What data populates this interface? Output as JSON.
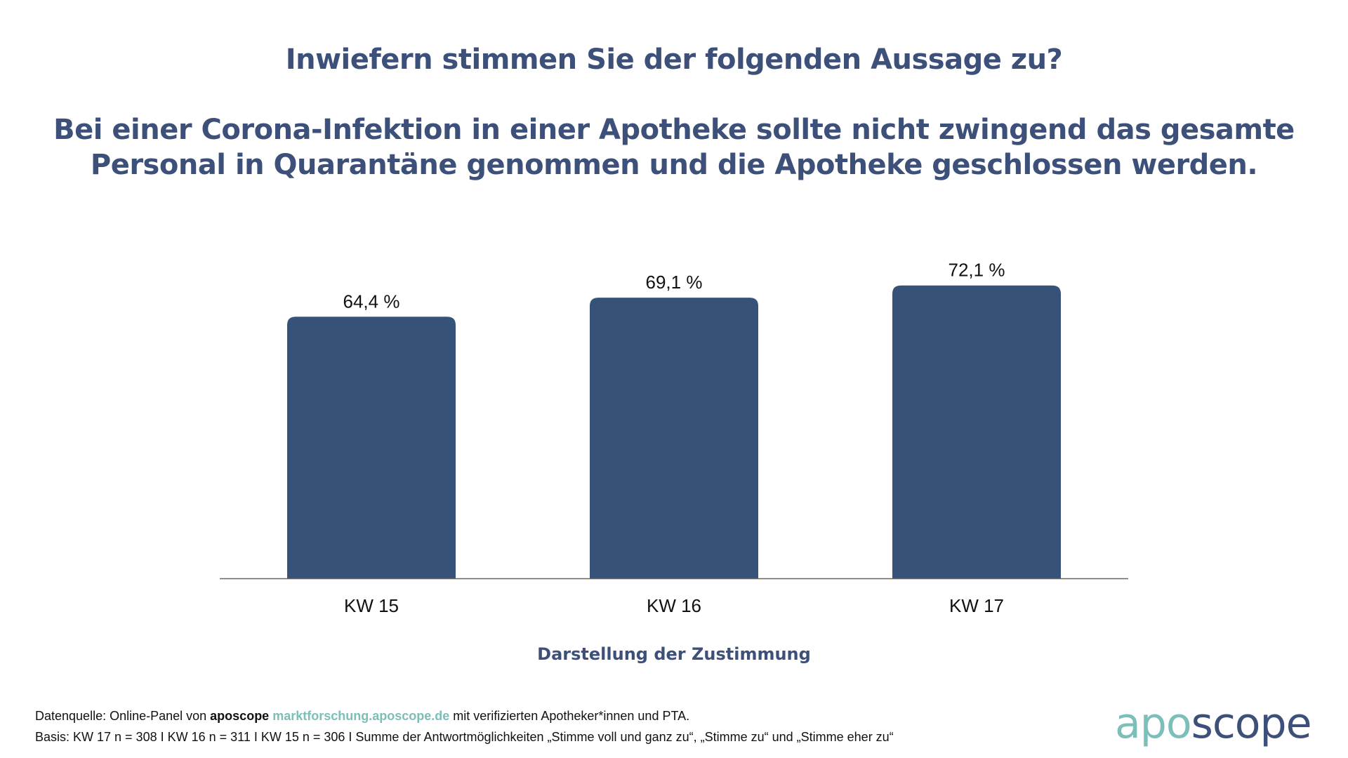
{
  "header": {
    "question": "Inwiefern stimmen Sie der folgenden Aussage zu?",
    "statement_line1": "Bei einer Corona-Infektion in einer Apotheke sollte nicht zwingend das gesamte",
    "statement_line2": "Personal in Quarantäne genommen und die Apotheke geschlossen werden."
  },
  "colors": {
    "title": "#3d5079",
    "bar": "#375279",
    "axis": "#666666",
    "teal": "#7bbfb8"
  },
  "chart_data": {
    "type": "bar",
    "title": "Inwiefern stimmen Sie der folgenden Aussage zu?",
    "subtitle": "Bei einer Corona-Infektion in einer Apotheke sollte nicht zwingend das gesamte Personal in Quarantäne genommen und die Apotheke geschlossen werden.",
    "categories": [
      "KW 15",
      "KW 16",
      "KW 17"
    ],
    "values": [
      64.4,
      69.1,
      72.1
    ],
    "value_labels": [
      "64,4 %",
      "69,1 %",
      "72,1 %"
    ],
    "xlabel": "Darstellung der Zustimmung",
    "ylabel": "",
    "ylim": [
      0,
      80
    ],
    "grid": false,
    "legend": "none"
  },
  "footer": {
    "source_prefix": "Datenquelle: Online-Panel von ",
    "source_brand": "aposcope",
    "source_url": "marktforschung.aposcope.de",
    "source_suffix": " mit verifizierten Apotheker*innen und PTA.",
    "basis": "Basis: KW 17 n = 308 I KW 16 n = 311 I KW 15 n = 306 I Summe der Antwortmöglichkeiten „Stimme voll und ganz zu“, „Stimme zu“ und „Stimme eher zu“"
  },
  "logo": {
    "part1": "apo",
    "part2": "scope"
  }
}
